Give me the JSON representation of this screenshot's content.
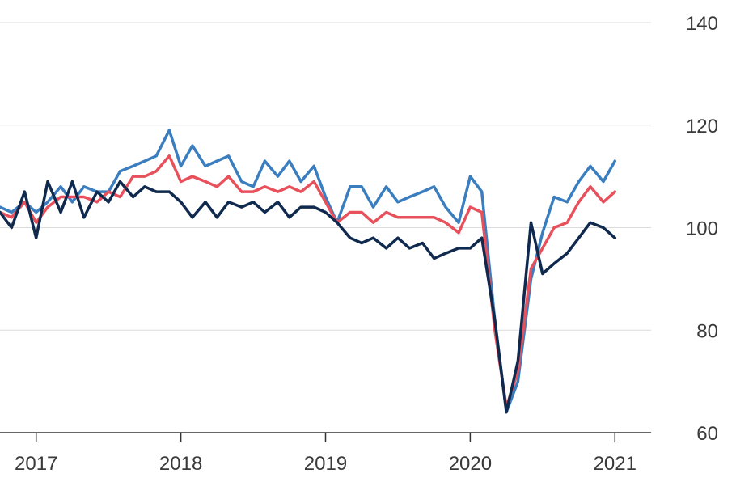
{
  "chart_data": {
    "type": "line",
    "title": "",
    "xlabel": "",
    "ylabel": "",
    "ylim": [
      60,
      140
    ],
    "xlim": [
      2016.75,
      2021.25
    ],
    "y_ticks": [
      60,
      80,
      100,
      120,
      140
    ],
    "y_tick_labels": [
      "60",
      "80",
      "100",
      "120",
      "140"
    ],
    "x_ticks": [
      2017,
      2018,
      2019,
      2020,
      2021
    ],
    "x_tick_labels": [
      "2017",
      "2018",
      "2019",
      "2020",
      "2021"
    ],
    "grid": true,
    "y_axis_side": "right",
    "legend": "none",
    "series": [
      {
        "color": "#3a7ebf",
        "points": [
          [
            2016.75,
            104
          ],
          [
            2016.83,
            103
          ],
          [
            2016.92,
            105
          ],
          [
            2017.0,
            103
          ],
          [
            2017.08,
            105
          ],
          [
            2017.17,
            108
          ],
          [
            2017.25,
            105
          ],
          [
            2017.33,
            108
          ],
          [
            2017.42,
            107
          ],
          [
            2017.5,
            107
          ],
          [
            2017.58,
            111
          ],
          [
            2017.67,
            112
          ],
          [
            2017.75,
            113
          ],
          [
            2017.83,
            114
          ],
          [
            2017.92,
            119
          ],
          [
            2018.0,
            112
          ],
          [
            2018.08,
            116
          ],
          [
            2018.17,
            112
          ],
          [
            2018.25,
            113
          ],
          [
            2018.33,
            114
          ],
          [
            2018.42,
            109
          ],
          [
            2018.5,
            108
          ],
          [
            2018.58,
            113
          ],
          [
            2018.67,
            110
          ],
          [
            2018.75,
            113
          ],
          [
            2018.83,
            109
          ],
          [
            2018.92,
            112
          ],
          [
            2019.0,
            106
          ],
          [
            2019.08,
            101
          ],
          [
            2019.17,
            108
          ],
          [
            2019.25,
            108
          ],
          [
            2019.33,
            104
          ],
          [
            2019.42,
            108
          ],
          [
            2019.5,
            105
          ],
          [
            2019.58,
            106
          ],
          [
            2019.67,
            107
          ],
          [
            2019.75,
            108
          ],
          [
            2019.83,
            104
          ],
          [
            2019.92,
            101
          ],
          [
            2020.0,
            110
          ],
          [
            2020.08,
            107
          ],
          [
            2020.17,
            82
          ],
          [
            2020.25,
            64
          ],
          [
            2020.33,
            70
          ],
          [
            2020.42,
            90
          ],
          [
            2020.5,
            99
          ],
          [
            2020.58,
            106
          ],
          [
            2020.67,
            105
          ],
          [
            2020.75,
            109
          ],
          [
            2020.83,
            112
          ],
          [
            2020.92,
            109
          ],
          [
            2021.0,
            113
          ]
        ]
      },
      {
        "color": "#e8505b",
        "points": [
          [
            2016.75,
            103
          ],
          [
            2016.83,
            102
          ],
          [
            2016.92,
            105
          ],
          [
            2017.0,
            101
          ],
          [
            2017.08,
            104
          ],
          [
            2017.17,
            106
          ],
          [
            2017.25,
            106
          ],
          [
            2017.33,
            106
          ],
          [
            2017.42,
            105
          ],
          [
            2017.5,
            107
          ],
          [
            2017.58,
            106
          ],
          [
            2017.67,
            110
          ],
          [
            2017.75,
            110
          ],
          [
            2017.83,
            111
          ],
          [
            2017.92,
            114
          ],
          [
            2018.0,
            109
          ],
          [
            2018.08,
            110
          ],
          [
            2018.17,
            109
          ],
          [
            2018.25,
            108
          ],
          [
            2018.33,
            110
          ],
          [
            2018.42,
            107
          ],
          [
            2018.5,
            107
          ],
          [
            2018.58,
            108
          ],
          [
            2018.67,
            107
          ],
          [
            2018.75,
            108
          ],
          [
            2018.83,
            107
          ],
          [
            2018.92,
            109
          ],
          [
            2019.0,
            105
          ],
          [
            2019.08,
            101
          ],
          [
            2019.17,
            103
          ],
          [
            2019.25,
            103
          ],
          [
            2019.33,
            101
          ],
          [
            2019.42,
            103
          ],
          [
            2019.5,
            102
          ],
          [
            2019.58,
            102
          ],
          [
            2019.67,
            102
          ],
          [
            2019.75,
            102
          ],
          [
            2019.83,
            101
          ],
          [
            2019.92,
            99
          ],
          [
            2020.0,
            104
          ],
          [
            2020.08,
            103
          ],
          [
            2020.17,
            80
          ],
          [
            2020.25,
            65
          ],
          [
            2020.33,
            72
          ],
          [
            2020.42,
            92
          ],
          [
            2020.5,
            96
          ],
          [
            2020.58,
            100
          ],
          [
            2020.67,
            101
          ],
          [
            2020.75,
            105
          ],
          [
            2020.83,
            108
          ],
          [
            2020.92,
            105
          ],
          [
            2021.0,
            107
          ]
        ]
      },
      {
        "color": "#0f2a4e",
        "points": [
          [
            2016.75,
            103
          ],
          [
            2016.83,
            100
          ],
          [
            2016.92,
            107
          ],
          [
            2017.0,
            98
          ],
          [
            2017.08,
            109
          ],
          [
            2017.17,
            103
          ],
          [
            2017.25,
            109
          ],
          [
            2017.33,
            102
          ],
          [
            2017.42,
            107
          ],
          [
            2017.5,
            105
          ],
          [
            2017.58,
            109
          ],
          [
            2017.67,
            106
          ],
          [
            2017.75,
            108
          ],
          [
            2017.83,
            107
          ],
          [
            2017.92,
            107
          ],
          [
            2018.0,
            105
          ],
          [
            2018.08,
            102
          ],
          [
            2018.17,
            105
          ],
          [
            2018.25,
            102
          ],
          [
            2018.33,
            105
          ],
          [
            2018.42,
            104
          ],
          [
            2018.5,
            105
          ],
          [
            2018.58,
            103
          ],
          [
            2018.67,
            105
          ],
          [
            2018.75,
            102
          ],
          [
            2018.83,
            104
          ],
          [
            2018.92,
            104
          ],
          [
            2019.0,
            103
          ],
          [
            2019.08,
            101
          ],
          [
            2019.17,
            98
          ],
          [
            2019.25,
            97
          ],
          [
            2019.33,
            98
          ],
          [
            2019.42,
            96
          ],
          [
            2019.5,
            98
          ],
          [
            2019.58,
            96
          ],
          [
            2019.67,
            97
          ],
          [
            2019.75,
            94
          ],
          [
            2019.83,
            95
          ],
          [
            2019.92,
            96
          ],
          [
            2020.0,
            96
          ],
          [
            2020.08,
            98
          ],
          [
            2020.17,
            82
          ],
          [
            2020.25,
            64
          ],
          [
            2020.33,
            74
          ],
          [
            2020.42,
            101
          ],
          [
            2020.5,
            91
          ],
          [
            2020.58,
            93
          ],
          [
            2020.67,
            95
          ],
          [
            2020.75,
            98
          ],
          [
            2020.83,
            101
          ],
          [
            2020.92,
            100
          ],
          [
            2021.0,
            98
          ]
        ]
      }
    ]
  }
}
